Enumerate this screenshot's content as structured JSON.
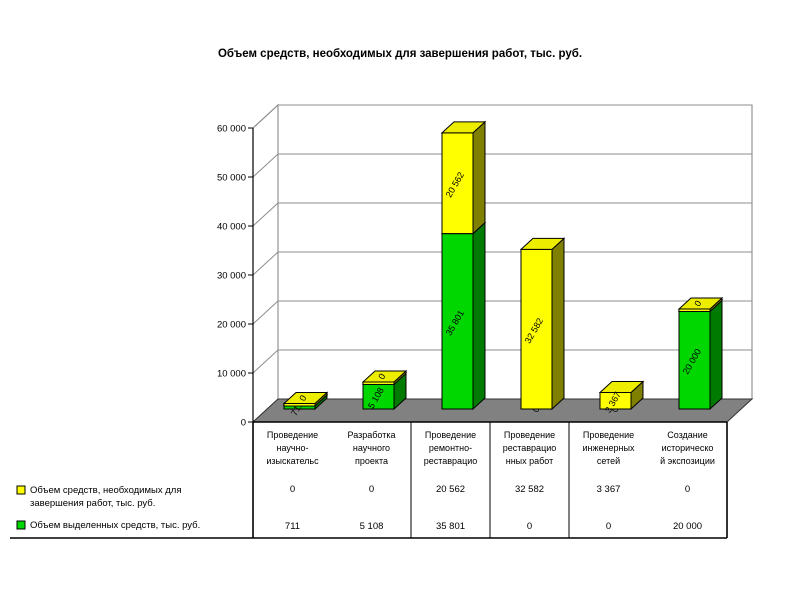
{
  "title": "Объем средств, необходимых для завершения работ, тыс. руб.",
  "chart_data": {
    "type": "bar",
    "subtype": "3d-stacked-column",
    "title": "Объем средств, необходимых для завершения работ, тыс. руб.",
    "categories": [
      "Проведение научно-изыскательс",
      "Разработка научного проекта",
      "Проведение ремонтно-реставрацио",
      "Проведение реставрацио нных работ",
      "Проведение инженерных сетей",
      "Создание историческо й экспозиции"
    ],
    "category_lines": [
      [
        "Проведение",
        "научно-",
        "изыскательс"
      ],
      [
        "Разработка",
        "научного",
        "проекта"
      ],
      [
        "Проведение",
        "ремонтно-",
        "реставрацио"
      ],
      [
        "Проведение",
        "реставрацио",
        "нных работ"
      ],
      [
        "Проведение",
        "инженерных",
        "сетей"
      ],
      [
        "Создание",
        "историческо",
        "й экспозиции"
      ]
    ],
    "series": [
      {
        "name": "Объем средств, необходимых для завершения работ, тыс. руб.",
        "color": "#FFFF00",
        "stack": "top",
        "values": [
          0,
          0,
          20562,
          32582,
          3367,
          0
        ],
        "labels": [
          "0",
          "0",
          "20 562",
          "32 582",
          "3 367",
          "0"
        ]
      },
      {
        "name": "Объем выделенных средств, тыс. руб.",
        "color": "#00D200",
        "stack": "bottom",
        "values": [
          711,
          5108,
          35801,
          0,
          0,
          20000
        ],
        "labels": [
          "711",
          "5 108",
          "35 801",
          "0",
          "0",
          "20 000"
        ]
      }
    ],
    "ylim": [
      0,
      60000
    ],
    "ytick_step": 10000,
    "ytick_labels": [
      "0",
      "10 000",
      "20 000",
      "30 000",
      "40 000",
      "50 000",
      "60 000"
    ],
    "grid": true,
    "legend_position": "bottom-left",
    "data_label_rotation_deg": -60
  },
  "legend": {
    "items": [
      {
        "color": "#FFFF00",
        "lines": [
          "Объем средств, необходимых для",
          "завершения работ, тыс. руб."
        ]
      },
      {
        "color": "#00D200",
        "lines": [
          "Объем выделенных средств, тыс. руб."
        ]
      }
    ]
  },
  "colors": {
    "yellow_front": "#FFFF00",
    "yellow_side": "#7F7F00",
    "yellow_top": "#EDED00",
    "green_front": "#00D700",
    "green_side": "#007A00",
    "green_top": "#00AA00",
    "floor": "#818181",
    "wall_edge": "#7F7F7F",
    "gridline": "#8C8C8C",
    "axis": "#000000"
  }
}
